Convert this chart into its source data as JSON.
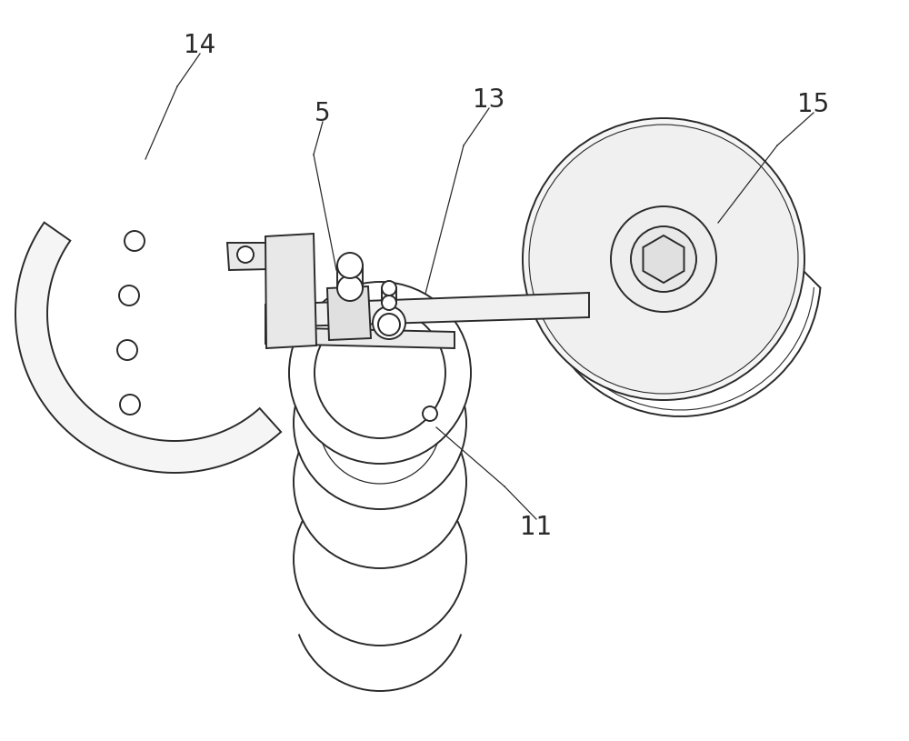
{
  "bg_color": "#ffffff",
  "line_color": "#2a2a2a",
  "line_width": 1.4,
  "label_fontsize": 20
}
